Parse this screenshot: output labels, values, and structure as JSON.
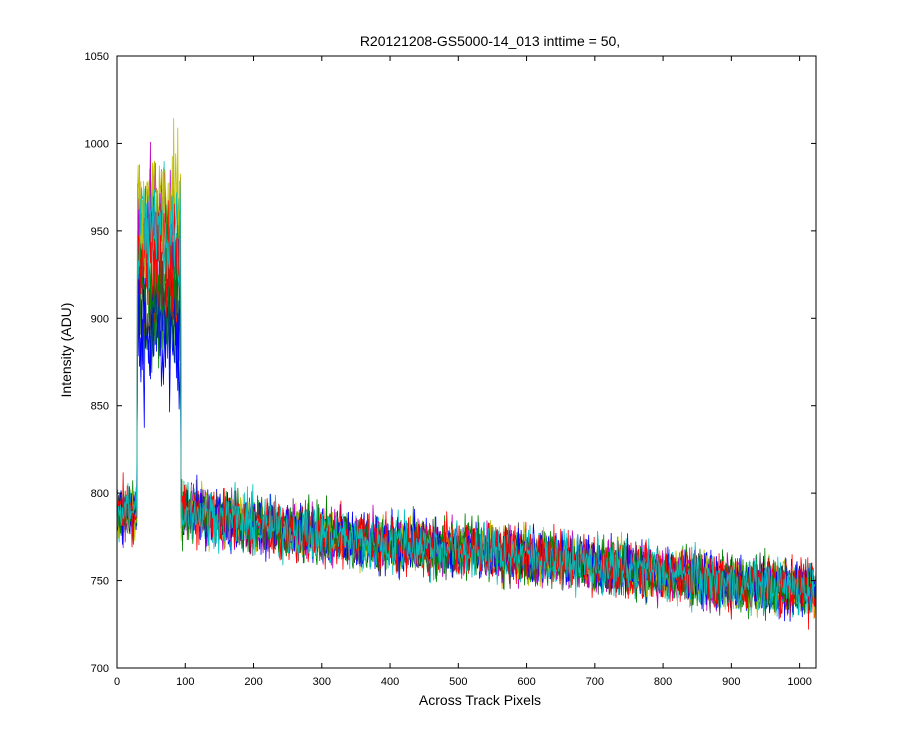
{
  "chart_data": {
    "type": "line",
    "title": "R20121208-GS5000-14_013 inttime = 50,",
    "xlabel": "Across Track Pixels",
    "ylabel": "Intensity (ADU)",
    "xlim": [
      0,
      1024
    ],
    "ylim": [
      700,
      1050
    ],
    "xticks": [
      0,
      100,
      200,
      300,
      400,
      500,
      600,
      700,
      800,
      900,
      1000
    ],
    "yticks": [
      700,
      750,
      800,
      850,
      900,
      950,
      1000,
      1050
    ],
    "grid": false,
    "legend": "none",
    "series_colors": [
      "#0000ff",
      "#008000",
      "#ff0000",
      "#00bfbf",
      "#bf00bf",
      "#bfbf00",
      "#404040",
      "#0000ff",
      "#008000",
      "#ff0000",
      "#00bfbf"
    ],
    "peak": {
      "x_range": [
        30,
        93
      ],
      "series_levels": [
        885,
        905,
        930,
        945,
        960,
        965,
        915,
        895,
        920,
        940,
        950
      ]
    },
    "baseline": {
      "x": [
        0,
        100,
        200,
        300,
        400,
        500,
        600,
        700,
        800,
        900,
        1024
      ],
      "y": [
        790,
        790,
        782,
        776,
        771,
        768,
        764,
        759,
        754,
        748,
        745
      ],
      "noise_amplitude": 14
    }
  }
}
